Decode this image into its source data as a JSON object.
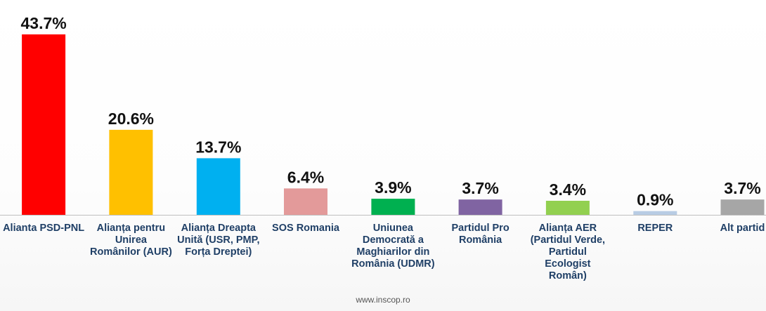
{
  "source": "www.inscop.ro",
  "chart_data": {
    "type": "bar",
    "title": "",
    "xlabel": "",
    "ylabel": "",
    "ylim": [
      0,
      45
    ],
    "grid": false,
    "categories": [
      "Alianta PSD-PNL",
      "Alianța pentru Unirea Românilor (AUR)",
      "Alianța Dreapta Unită (USR, PMP, Forța Dreptei)",
      "SOS Romania",
      "Uniunea Democrată a Maghiarilor din România (UDMR)",
      "Partidul Pro România",
      "Alianța AER (Partidul Verde, Partidul Ecologist Român)",
      "REPER",
      "Alt partid"
    ],
    "values": [
      43.7,
      20.6,
      13.7,
      6.4,
      3.9,
      3.7,
      3.4,
      0.9,
      3.7
    ],
    "value_labels": [
      "43.7%",
      "20.6%",
      "13.7%",
      "6.4%",
      "3.9%",
      "3.7%",
      "3.4%",
      "0.9%",
      "3.7%"
    ],
    "colors": [
      "#ff0000",
      "#ffc000",
      "#00b0f0",
      "#e39a9a",
      "#00b050",
      "#8064a2",
      "#92d050",
      "#b8cce4",
      "#a6a6a6"
    ]
  }
}
